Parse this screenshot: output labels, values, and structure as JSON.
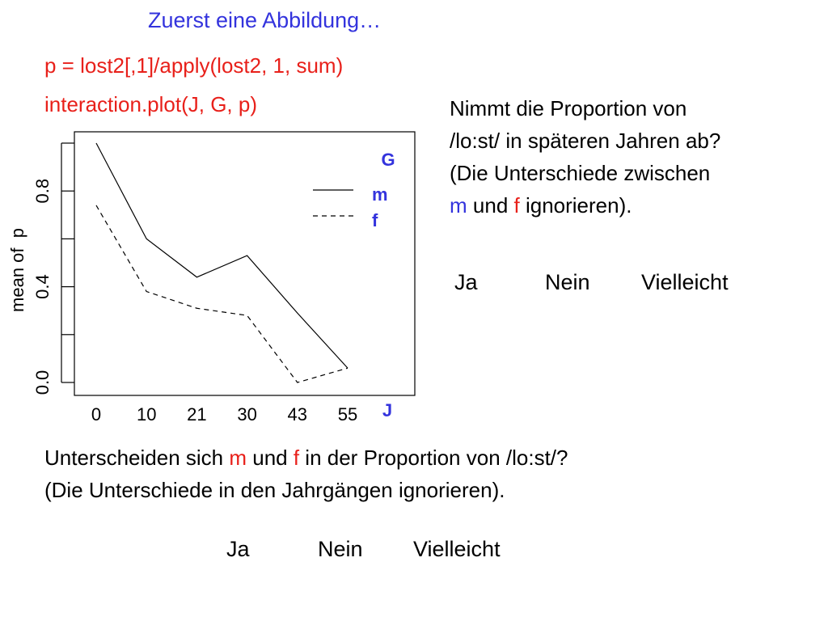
{
  "title": "Zuerst eine Abbildung…",
  "code": {
    "line1": "p = lost2[,1]/apply(lost2, 1, sum)",
    "line2": "interaction.plot(J, G, p)"
  },
  "question1": {
    "line1": "Nimmt die Proportion von",
    "line2": "/lo:st/ in späteren Jahren ab?",
    "line3": "(Die Unterschiede zwischen",
    "m": "m",
    "und": " und ",
    "f": "f",
    "rest": " ignorieren).",
    "options": [
      "Ja",
      "Nein",
      "Vielleicht"
    ]
  },
  "question2": {
    "before": "Unterscheiden sich ",
    "m": "m",
    "und": " und ",
    "f": "f",
    "after": " in der Proportion von /lo:st/?",
    "line2": "(Die Unterschiede in den Jahrgängen ignorieren).",
    "options": [
      "Ja",
      "Nein",
      "Vielleicht"
    ]
  },
  "colors": {
    "title": "#3333dd",
    "code": "#e8201a",
    "legend": "#3333dd"
  },
  "chart_data": {
    "type": "line",
    "x": [
      "0",
      "10",
      "21",
      "30",
      "43",
      "55"
    ],
    "series": [
      {
        "name": "m",
        "values": [
          1.0,
          0.6,
          0.44,
          0.53,
          0.29,
          0.06
        ],
        "style": "solid"
      },
      {
        "name": "f",
        "values": [
          0.74,
          0.38,
          0.31,
          0.28,
          0.0,
          0.06
        ],
        "style": "dashed"
      }
    ],
    "xlabel": "J",
    "ylabel": "mean of  p",
    "yticks": [
      0.0,
      0.2,
      0.4,
      0.6,
      0.8,
      1.0
    ],
    "yticklabels": [
      "0.0",
      "0.4",
      "0.8"
    ],
    "ylim": [
      0.0,
      1.0
    ],
    "legend_title": "G",
    "legend_position": "top-right",
    "grid": false
  }
}
